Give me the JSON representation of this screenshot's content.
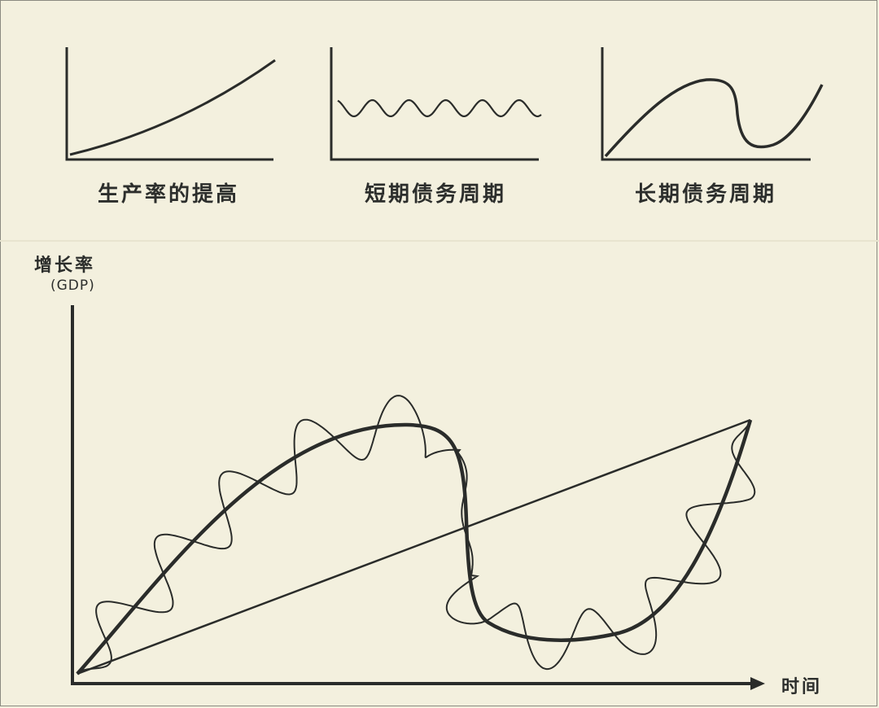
{
  "mini_charts": [
    {
      "title": "生产率的提高",
      "curve": "rising-convex"
    },
    {
      "title": "短期债务周期",
      "curve": "oscillating-wave"
    },
    {
      "title": "长期债务周期",
      "curve": "rise-fall-rise"
    }
  ],
  "main_chart": {
    "y_label": "增长率",
    "y_sublabel": "(GDP)",
    "x_label": "时间",
    "series": [
      {
        "role": "productivity-trend",
        "shape": "straight-line",
        "stroke": "thin"
      },
      {
        "role": "long-term-debt-cycle",
        "shape": "s-curve",
        "stroke": "thick"
      },
      {
        "role": "short-term-debt-cycles",
        "shape": "oscillation-around-long-cycle",
        "stroke": "thin"
      }
    ]
  },
  "colors": {
    "background": "#f3f0de",
    "ink": "#2a2c2a"
  }
}
